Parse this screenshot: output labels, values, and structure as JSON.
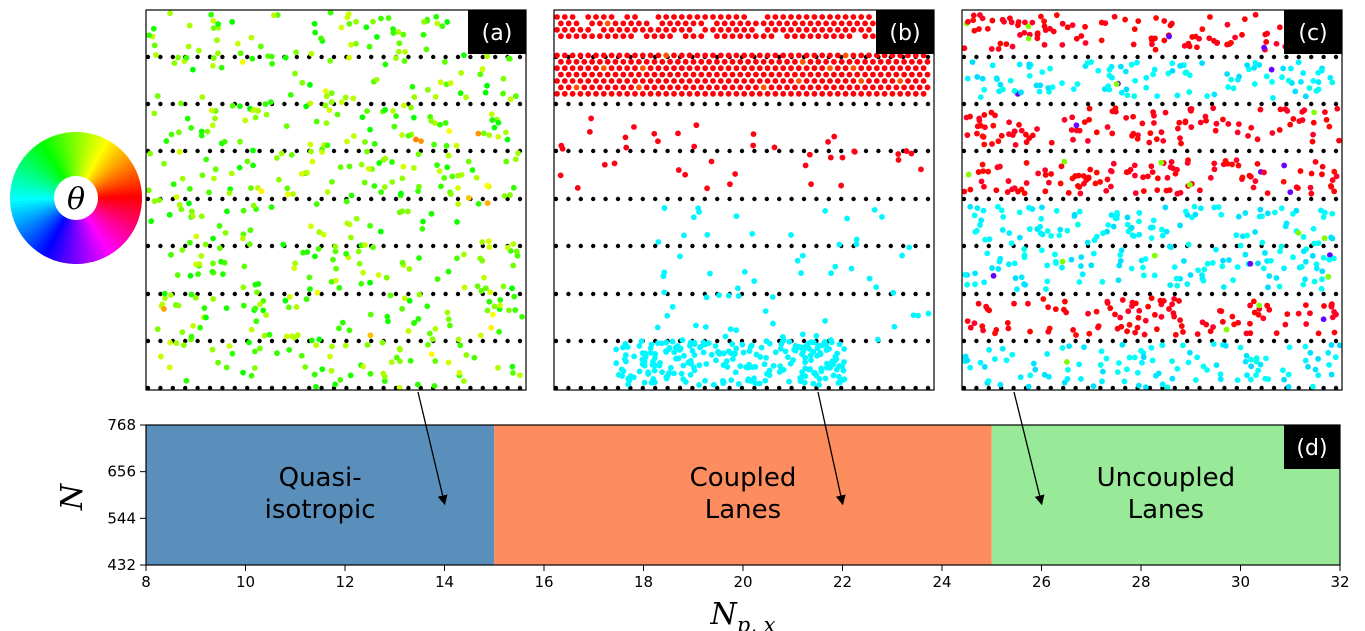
{
  "chart_data": [
    {
      "type": "scatter",
      "panel_tag": "(a)",
      "description_state": "quasi-isotropic",
      "pin_rows": 8,
      "particle_hue_range_deg": [
        70,
        120
      ],
      "colormap_label": "θ"
    },
    {
      "type": "scatter",
      "panel_tag": "(b)",
      "description_state": "coupled lanes",
      "pin_rows": 8
    },
    {
      "type": "scatter",
      "panel_tag": "(c)",
      "description_state": "uncoupled lanes",
      "pin_rows": 8
    },
    {
      "type": "area",
      "panel_tag": "(d)",
      "xlabel": "N_{p,x}",
      "ylabel": "N",
      "xlim": [
        8,
        32
      ],
      "ylim": [
        432,
        768
      ],
      "xticks": [
        8,
        10,
        12,
        14,
        16,
        18,
        20,
        22,
        24,
        26,
        28,
        30,
        32
      ],
      "yticks": [
        432,
        544,
        656,
        768
      ],
      "regions": [
        {
          "x0": 8,
          "x1": 15,
          "label_line1": "Quasi-",
          "label_line2": "isotropic",
          "color": "#5b8fbb"
        },
        {
          "x0": 15,
          "x1": 25,
          "label_line1": "Coupled",
          "label_line2": "Lanes",
          "color": "#fd8c5f"
        },
        {
          "x0": 25,
          "x1": 32,
          "label_line1": "Uncoupled",
          "label_line2": "Lanes",
          "color": "#98ea98"
        }
      ],
      "arrows": [
        {
          "to_x": 14,
          "to_y": 580,
          "from_panel": "(a)"
        },
        {
          "to_x": 22,
          "to_y": 580,
          "from_panel": "(b)"
        },
        {
          "to_x": 26,
          "to_y": 580,
          "from_panel": "(c)"
        }
      ]
    }
  ],
  "colors": {
    "pin": "#000000",
    "red_lane": "#ee1c26",
    "cyan_lane": "#23e6ee",
    "green": "#7ee81e"
  }
}
